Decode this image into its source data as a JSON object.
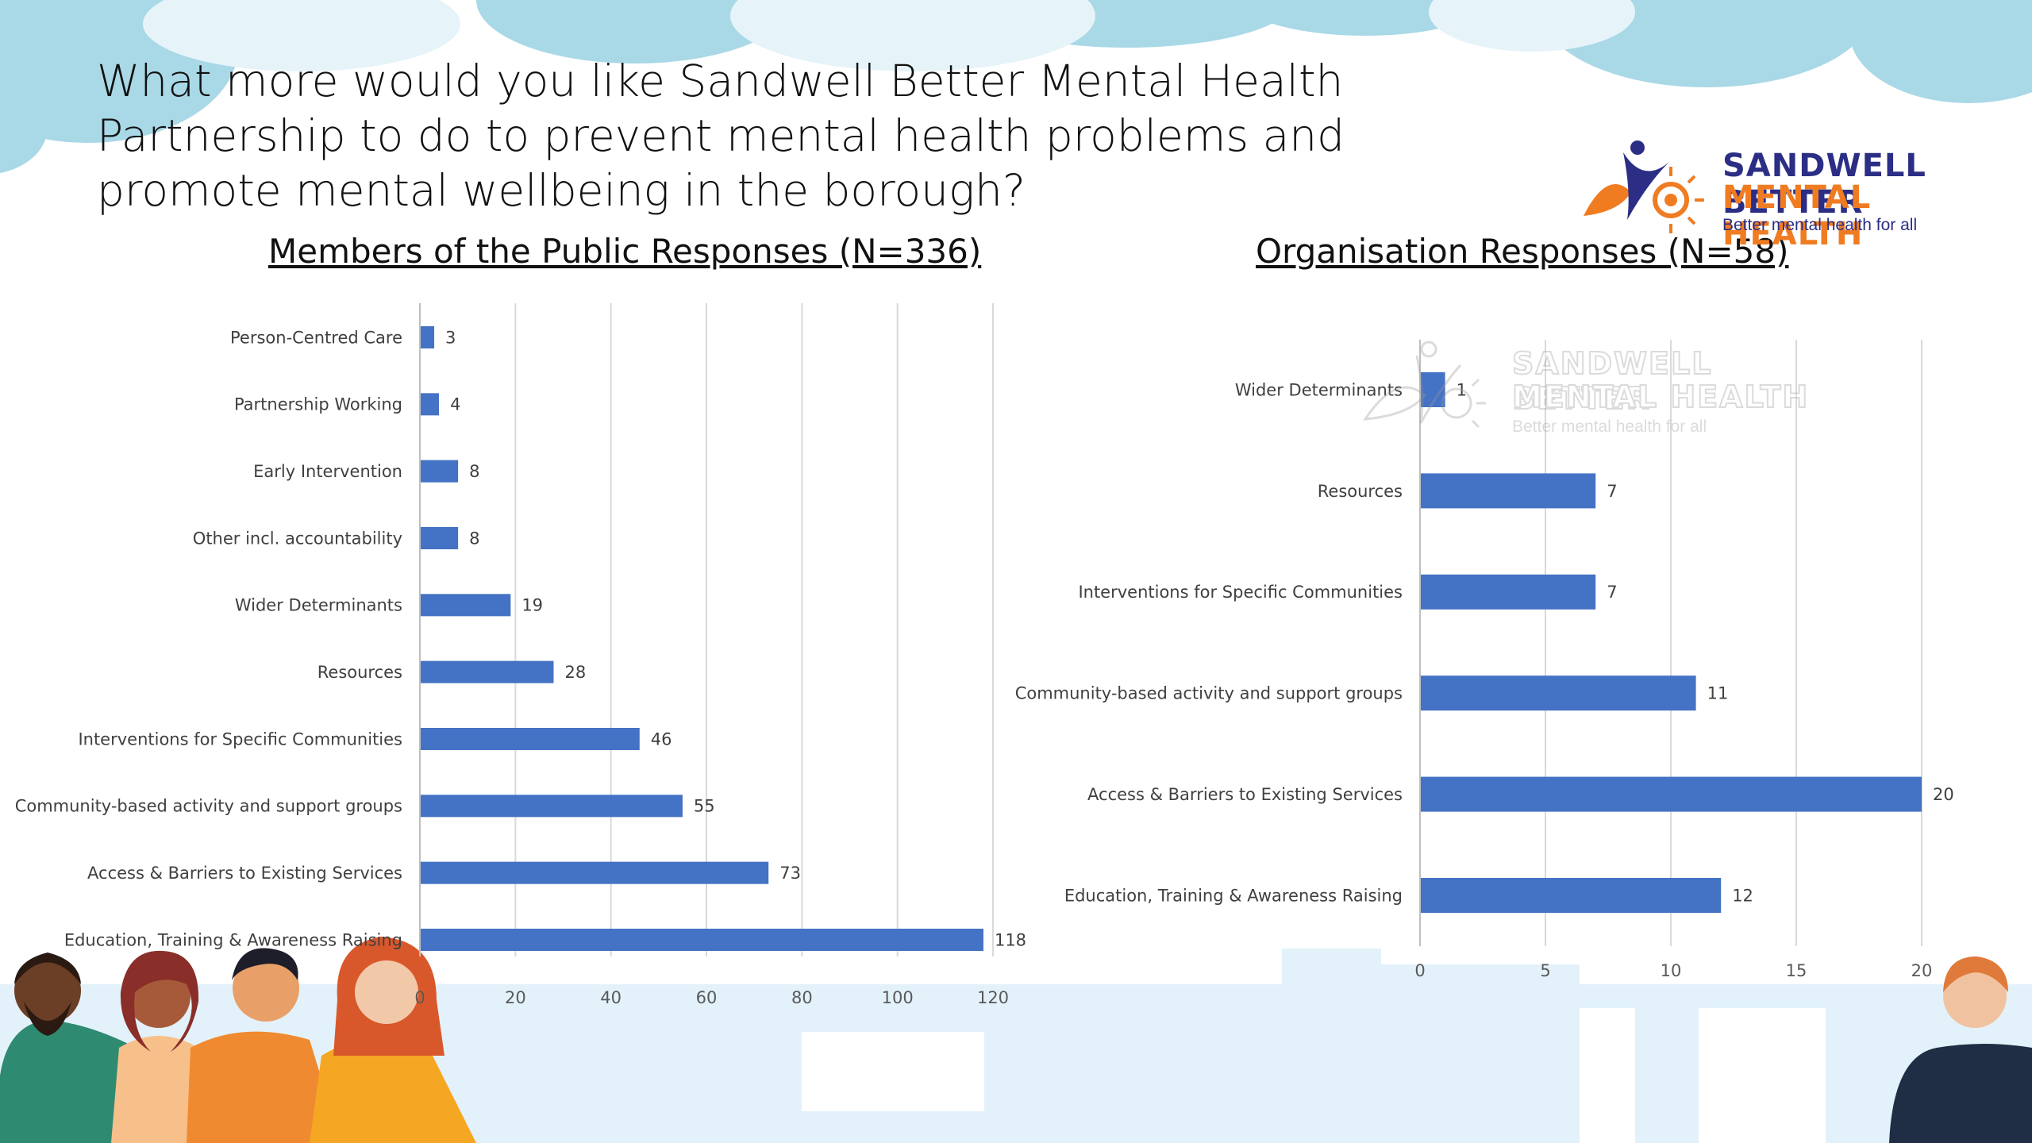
{
  "slide": {
    "title": "What more would you like Sandwell Better Mental Health Partnership to do to prevent mental health problems and promote mental wellbeing in the borough?"
  },
  "logo": {
    "line1": "SANDWELL BETTER",
    "line2": "MENTAL HEALTH",
    "tagline": "Better mental health for all"
  },
  "watermark": {
    "line1": "SANDWELL BETTER",
    "line2": "MENTAL HEALTH",
    "tagline": "Better mental health for all"
  },
  "colors": {
    "bar": "#4472c4",
    "cloud": "#a9d8e6",
    "skyline": "#e3f2fa"
  },
  "chart_data": [
    {
      "type": "bar",
      "orientation": "horizontal",
      "title": "Members of the Public Responses (N=336)",
      "categories": [
        "Person-Centred Care",
        "Partnership Working",
        "Early Intervention",
        "Other incl. accountability",
        "Wider Determinants",
        "Resources",
        "Interventions for Specific Communities",
        "Community-based activity and support groups",
        "Access & Barriers to Existing Services",
        "Education, Training & Awareness Raising"
      ],
      "values": [
        3,
        4,
        8,
        8,
        19,
        28,
        46,
        55,
        73,
        118
      ],
      "xlim": [
        0,
        120
      ],
      "xticks": [
        0,
        20,
        40,
        60,
        80,
        100,
        120
      ],
      "grid": true
    },
    {
      "type": "bar",
      "orientation": "horizontal",
      "title": "Organisation Responses (N=58)",
      "categories": [
        "Wider Determinants",
        "Resources",
        "Interventions for Specific Communities",
        "Community-based activity and support groups",
        "Access & Barriers to Existing Services",
        "Education, Training & Awareness Raising"
      ],
      "values": [
        1,
        7,
        7,
        11,
        20,
        12
      ],
      "xlim": [
        0,
        20
      ],
      "xticks": [
        0,
        5,
        10,
        15,
        20
      ],
      "grid": true
    }
  ]
}
